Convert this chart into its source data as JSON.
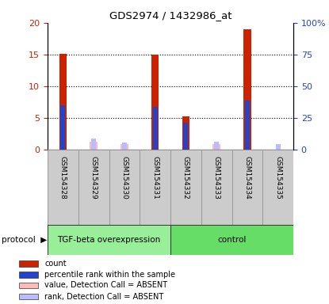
{
  "title": "GDS2974 / 1432986_at",
  "samples": [
    "GSM154328",
    "GSM154329",
    "GSM154330",
    "GSM154331",
    "GSM154332",
    "GSM154333",
    "GSM154334",
    "GSM154335"
  ],
  "count_values": [
    15.1,
    0.0,
    0.0,
    15.0,
    5.3,
    0.0,
    19.0,
    0.0
  ],
  "rank_values_pct": [
    35.0,
    0.0,
    0.0,
    33.5,
    21.0,
    0.0,
    39.0,
    0.0
  ],
  "absent_value": [
    0.0,
    1.2,
    0.85,
    0.0,
    0.0,
    0.9,
    0.0,
    0.0
  ],
  "absent_rank_pct": [
    0.0,
    9.0,
    5.5,
    0.0,
    0.0,
    6.0,
    0.0,
    4.5
  ],
  "present_absent": [
    true,
    false,
    false,
    true,
    true,
    false,
    true,
    false
  ],
  "ylim_left": [
    0,
    20
  ],
  "ylim_right": [
    0,
    100
  ],
  "yticks_left": [
    0,
    5,
    10,
    15,
    20
  ],
  "yticks_right": [
    0,
    25,
    50,
    75,
    100
  ],
  "color_count": "#cc2200",
  "color_rank": "#2244cc",
  "color_absent_value": "#ffbbbb",
  "color_absent_rank": "#bbbbff",
  "protocol_groups": [
    {
      "label": "TGF-beta overexpression",
      "start": 0,
      "end": 4,
      "color": "#99ee99"
    },
    {
      "label": "control",
      "start": 4,
      "end": 8,
      "color": "#66dd66"
    }
  ],
  "bar_width": 0.25,
  "legend_items": [
    {
      "label": "count",
      "color": "#cc2200"
    },
    {
      "label": "percentile rank within the sample",
      "color": "#2244cc"
    },
    {
      "label": "value, Detection Call = ABSENT",
      "color": "#ffbbbb"
    },
    {
      "label": "rank, Detection Call = ABSENT",
      "color": "#bbbbff"
    }
  ],
  "bg_color": "#cccccc",
  "left_axis_color": "#cc2200",
  "right_axis_color": "#2244cc"
}
